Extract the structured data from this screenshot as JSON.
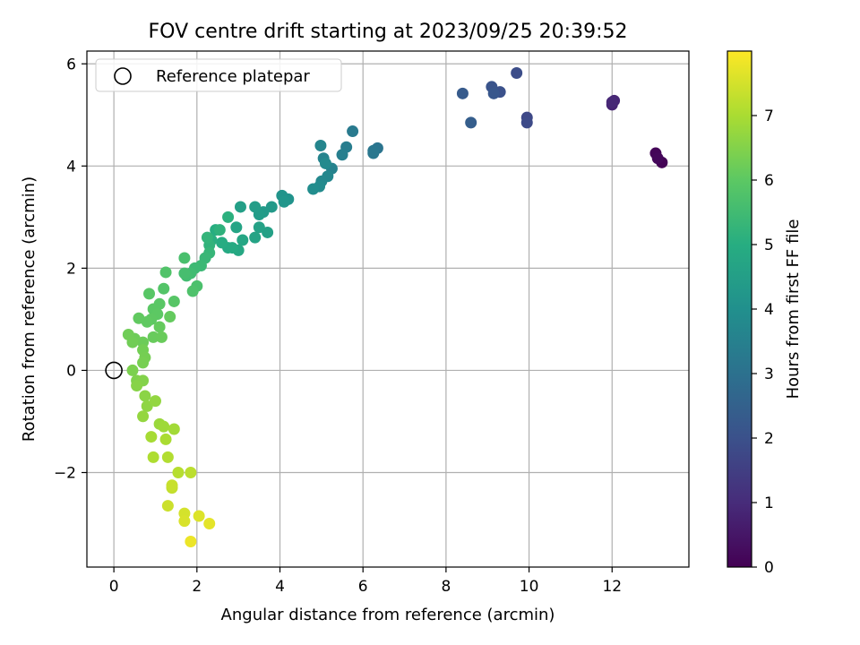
{
  "chart_data": {
    "type": "scatter",
    "title": "FOV centre drift starting at 2023/09/25 20:39:52",
    "xlabel": "Angular distance from reference (arcmin)",
    "ylabel": "Rotation from reference (arcmin)",
    "xlim": [
      -0.65,
      13.85
    ],
    "ylim": [
      -3.85,
      6.25
    ],
    "xticks": [
      0,
      2,
      4,
      6,
      8,
      10,
      12
    ],
    "yticks": [
      -2,
      0,
      2,
      4,
      6
    ],
    "xtick_labels": [
      "0",
      "2",
      "4",
      "6",
      "8",
      "10",
      "12"
    ],
    "ytick_labels": [
      "−2",
      "0",
      "2",
      "4",
      "6"
    ],
    "grid": true,
    "legend": {
      "placement": "top-left",
      "entries": [
        "Reference platepar"
      ]
    },
    "reference_point": {
      "x": 0,
      "y": 0
    },
    "colorbar": {
      "label": "Hours from first FF file",
      "range": [
        0,
        8.0
      ],
      "ticks": [
        0,
        1,
        2,
        3,
        4,
        5,
        6,
        7
      ],
      "tick_labels": [
        "0",
        "1",
        "2",
        "3",
        "4",
        "5",
        "6",
        "7"
      ],
      "colormap": "viridis"
    },
    "points": [
      {
        "x": 13.2,
        "y": 4.07,
        "c": 0.05
      },
      {
        "x": 13.05,
        "y": 4.25,
        "c": 0.1
      },
      {
        "x": 13.1,
        "y": 4.15,
        "c": 0.15
      },
      {
        "x": 12.0,
        "y": 5.2,
        "c": 0.8
      },
      {
        "x": 12.05,
        "y": 5.28,
        "c": 0.85
      },
      {
        "x": 12.0,
        "y": 5.25,
        "c": 0.9
      },
      {
        "x": 9.95,
        "y": 4.95,
        "c": 1.75
      },
      {
        "x": 9.95,
        "y": 4.85,
        "c": 1.8
      },
      {
        "x": 9.7,
        "y": 5.82,
        "c": 1.9
      },
      {
        "x": 9.3,
        "y": 5.45,
        "c": 2.0
      },
      {
        "x": 9.1,
        "y": 5.55,
        "c": 2.1
      },
      {
        "x": 9.15,
        "y": 5.42,
        "c": 2.2
      },
      {
        "x": 8.4,
        "y": 5.42,
        "c": 2.3
      },
      {
        "x": 8.6,
        "y": 4.85,
        "c": 2.4
      },
      {
        "x": 6.35,
        "y": 4.35,
        "c": 3.1
      },
      {
        "x": 6.25,
        "y": 4.3,
        "c": 3.15
      },
      {
        "x": 6.25,
        "y": 4.25,
        "c": 3.2
      },
      {
        "x": 5.75,
        "y": 4.68,
        "c": 3.3
      },
      {
        "x": 5.6,
        "y": 4.37,
        "c": 3.4
      },
      {
        "x": 5.5,
        "y": 4.22,
        "c": 3.45
      },
      {
        "x": 5.25,
        "y": 3.95,
        "c": 3.55
      },
      {
        "x": 5.05,
        "y": 4.15,
        "c": 3.6
      },
      {
        "x": 4.98,
        "y": 4.4,
        "c": 3.65
      },
      {
        "x": 5.15,
        "y": 3.8,
        "c": 3.7
      },
      {
        "x": 5.0,
        "y": 3.7,
        "c": 3.75
      },
      {
        "x": 5.1,
        "y": 4.05,
        "c": 3.8
      },
      {
        "x": 4.95,
        "y": 3.6,
        "c": 3.85
      },
      {
        "x": 4.8,
        "y": 3.55,
        "c": 3.9
      },
      {
        "x": 4.2,
        "y": 3.35,
        "c": 4.1
      },
      {
        "x": 4.05,
        "y": 3.42,
        "c": 4.15
      },
      {
        "x": 4.1,
        "y": 3.3,
        "c": 4.2
      },
      {
        "x": 3.8,
        "y": 3.2,
        "c": 4.3
      },
      {
        "x": 3.6,
        "y": 3.1,
        "c": 4.35
      },
      {
        "x": 3.5,
        "y": 3.05,
        "c": 4.4
      },
      {
        "x": 3.4,
        "y": 3.2,
        "c": 4.45
      },
      {
        "x": 3.05,
        "y": 3.2,
        "c": 4.5
      },
      {
        "x": 3.7,
        "y": 2.7,
        "c": 4.55
      },
      {
        "x": 3.5,
        "y": 2.8,
        "c": 4.6
      },
      {
        "x": 3.4,
        "y": 2.6,
        "c": 4.65
      },
      {
        "x": 2.95,
        "y": 2.8,
        "c": 4.7
      },
      {
        "x": 3.1,
        "y": 2.55,
        "c": 4.75
      },
      {
        "x": 3.0,
        "y": 2.35,
        "c": 4.8
      },
      {
        "x": 2.75,
        "y": 2.4,
        "c": 4.85
      },
      {
        "x": 2.85,
        "y": 2.4,
        "c": 4.9
      },
      {
        "x": 2.6,
        "y": 2.5,
        "c": 4.95
      },
      {
        "x": 2.45,
        "y": 2.75,
        "c": 5.0
      },
      {
        "x": 2.35,
        "y": 2.55,
        "c": 5.05
      },
      {
        "x": 2.75,
        "y": 3.0,
        "c": 5.1
      },
      {
        "x": 2.55,
        "y": 2.75,
        "c": 5.15
      },
      {
        "x": 2.3,
        "y": 2.45,
        "c": 5.2
      },
      {
        "x": 2.25,
        "y": 2.6,
        "c": 5.25
      },
      {
        "x": 2.3,
        "y": 2.3,
        "c": 5.3
      },
      {
        "x": 2.2,
        "y": 2.2,
        "c": 5.35
      },
      {
        "x": 2.1,
        "y": 2.05,
        "c": 5.4
      },
      {
        "x": 1.95,
        "y": 2.0,
        "c": 5.45
      },
      {
        "x": 1.85,
        "y": 1.9,
        "c": 5.5
      },
      {
        "x": 1.75,
        "y": 1.85,
        "c": 5.55
      },
      {
        "x": 1.7,
        "y": 1.9,
        "c": 5.6
      },
      {
        "x": 1.7,
        "y": 2.2,
        "c": 5.65
      },
      {
        "x": 2.0,
        "y": 1.65,
        "c": 5.7
      },
      {
        "x": 1.9,
        "y": 1.55,
        "c": 5.75
      },
      {
        "x": 1.25,
        "y": 1.92,
        "c": 5.8
      },
      {
        "x": 1.2,
        "y": 1.6,
        "c": 5.85
      },
      {
        "x": 1.45,
        "y": 1.35,
        "c": 5.9
      },
      {
        "x": 0.85,
        "y": 1.5,
        "c": 5.92
      },
      {
        "x": 1.1,
        "y": 1.3,
        "c": 5.95
      },
      {
        "x": 0.95,
        "y": 1.2,
        "c": 5.97
      },
      {
        "x": 1.05,
        "y": 1.1,
        "c": 6.0
      },
      {
        "x": 0.9,
        "y": 1.0,
        "c": 6.02
      },
      {
        "x": 0.8,
        "y": 0.95,
        "c": 6.05
      },
      {
        "x": 0.6,
        "y": 1.02,
        "c": 6.07
      },
      {
        "x": 1.35,
        "y": 1.05,
        "c": 6.1
      },
      {
        "x": 1.1,
        "y": 0.85,
        "c": 6.12
      },
      {
        "x": 0.95,
        "y": 0.65,
        "c": 6.15
      },
      {
        "x": 1.15,
        "y": 0.65,
        "c": 6.17
      },
      {
        "x": 0.7,
        "y": 0.55,
        "c": 6.2
      },
      {
        "x": 0.5,
        "y": 0.62,
        "c": 6.22
      },
      {
        "x": 0.35,
        "y": 0.7,
        "c": 6.25
      },
      {
        "x": 0.45,
        "y": 0.55,
        "c": 6.27
      },
      {
        "x": 0.7,
        "y": 0.4,
        "c": 6.3
      },
      {
        "x": 0.75,
        "y": 0.25,
        "c": 6.32
      },
      {
        "x": 0.7,
        "y": 0.15,
        "c": 6.35
      },
      {
        "x": 0.45,
        "y": 0.0,
        "c": 6.4
      },
      {
        "x": 0.55,
        "y": -0.2,
        "c": 6.45
      },
      {
        "x": 0.7,
        "y": -0.2,
        "c": 6.5
      },
      {
        "x": 0.55,
        "y": -0.3,
        "c": 6.55
      },
      {
        "x": 0.75,
        "y": -0.5,
        "c": 6.6
      },
      {
        "x": 0.8,
        "y": -0.7,
        "c": 6.65
      },
      {
        "x": 1.0,
        "y": -0.6,
        "c": 6.7
      },
      {
        "x": 0.7,
        "y": -0.9,
        "c": 6.72
      },
      {
        "x": 1.1,
        "y": -1.05,
        "c": 6.8
      },
      {
        "x": 1.2,
        "y": -1.1,
        "c": 6.85
      },
      {
        "x": 1.45,
        "y": -1.15,
        "c": 6.9
      },
      {
        "x": 0.9,
        "y": -1.3,
        "c": 6.95
      },
      {
        "x": 1.25,
        "y": -1.35,
        "c": 7.0
      },
      {
        "x": 0.95,
        "y": -1.7,
        "c": 7.05
      },
      {
        "x": 1.3,
        "y": -1.7,
        "c": 7.1
      },
      {
        "x": 1.55,
        "y": -2.0,
        "c": 7.15
      },
      {
        "x": 1.85,
        "y": -2.0,
        "c": 7.2
      },
      {
        "x": 1.4,
        "y": -2.3,
        "c": 7.3
      },
      {
        "x": 1.4,
        "y": -2.25,
        "c": 7.35
      },
      {
        "x": 1.3,
        "y": -2.65,
        "c": 7.4
      },
      {
        "x": 1.7,
        "y": -2.8,
        "c": 7.5
      },
      {
        "x": 1.7,
        "y": -2.95,
        "c": 7.55
      },
      {
        "x": 2.05,
        "y": -2.85,
        "c": 7.6
      },
      {
        "x": 2.3,
        "y": -3.0,
        "c": 7.7
      },
      {
        "x": 1.85,
        "y": -3.35,
        "c": 7.8
      }
    ]
  }
}
